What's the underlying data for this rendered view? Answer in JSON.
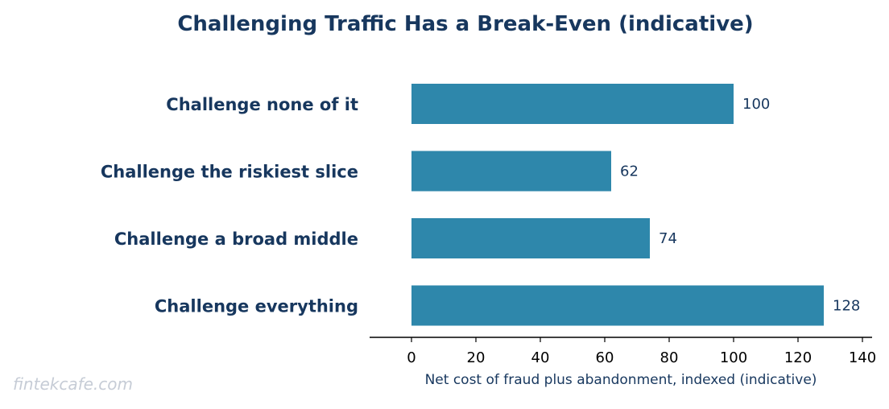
{
  "chart_data": {
    "type": "bar",
    "orientation": "horizontal",
    "title": "Challenging Traffic Has a Break-Even (indicative)",
    "xlabel": "Net cost of fraud plus abandonment, indexed (indicative)",
    "ylabel": "",
    "categories": [
      "Challenge none of it",
      "Challenge the riskiest slice",
      "Challenge a broad middle",
      "Challenge everything"
    ],
    "values": [
      100,
      62,
      74,
      128
    ],
    "data_labels": [
      "100",
      "62",
      "74",
      "128"
    ],
    "xlim": [
      -13,
      143
    ],
    "xticks": [
      0,
      20,
      40,
      60,
      80,
      100,
      120,
      140
    ],
    "grid": false,
    "legend": "none"
  },
  "colors": {
    "bar": "#2e87ab",
    "title": "#17375e",
    "text": "#17375e",
    "axis": "#000000",
    "watermark": "#c6ccd6"
  },
  "watermark": "fintekcafe.com"
}
